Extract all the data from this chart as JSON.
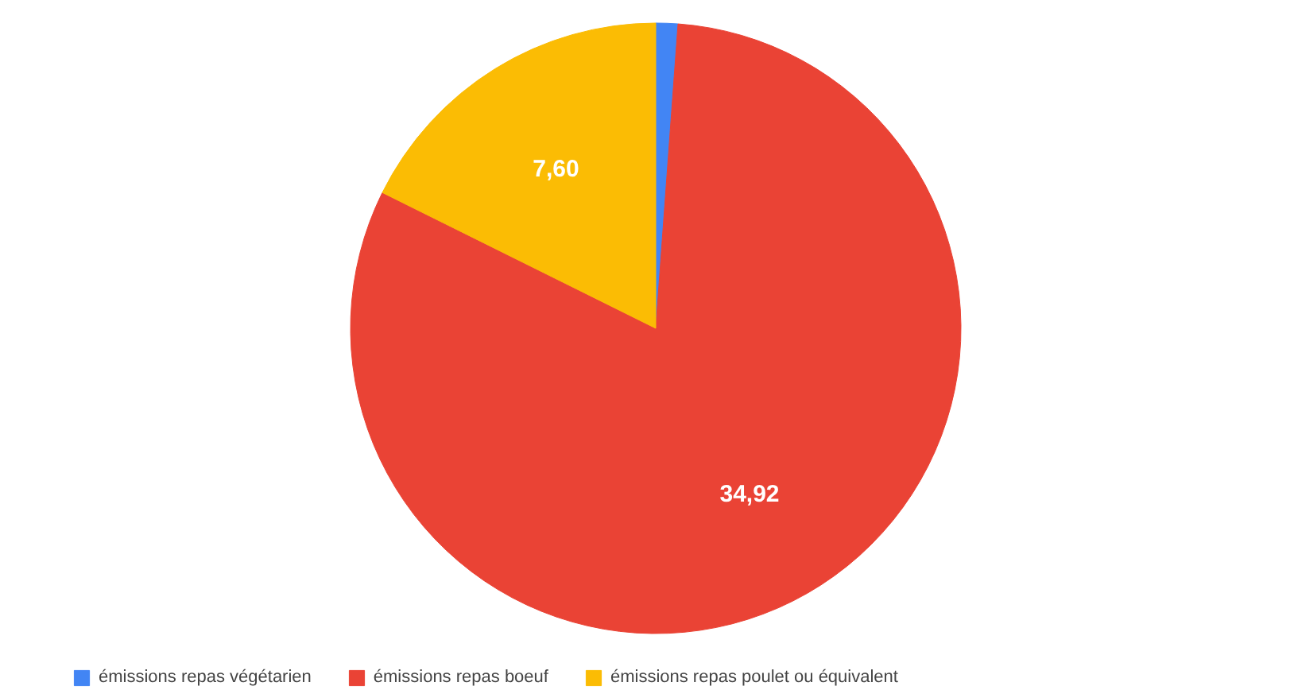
{
  "chart_data": {
    "type": "pie",
    "categories": [
      "émissions repas végétarien",
      "émissions repas boeuf",
      "émissions repas poulet ou équivalent"
    ],
    "values": [
      0.5,
      34.92,
      7.6
    ],
    "value_labels": [
      null,
      "34,92",
      "7,60"
    ],
    "colors": [
      "#4285f4",
      "#ea4335",
      "#fbbc04"
    ],
    "legend": "bottom"
  }
}
